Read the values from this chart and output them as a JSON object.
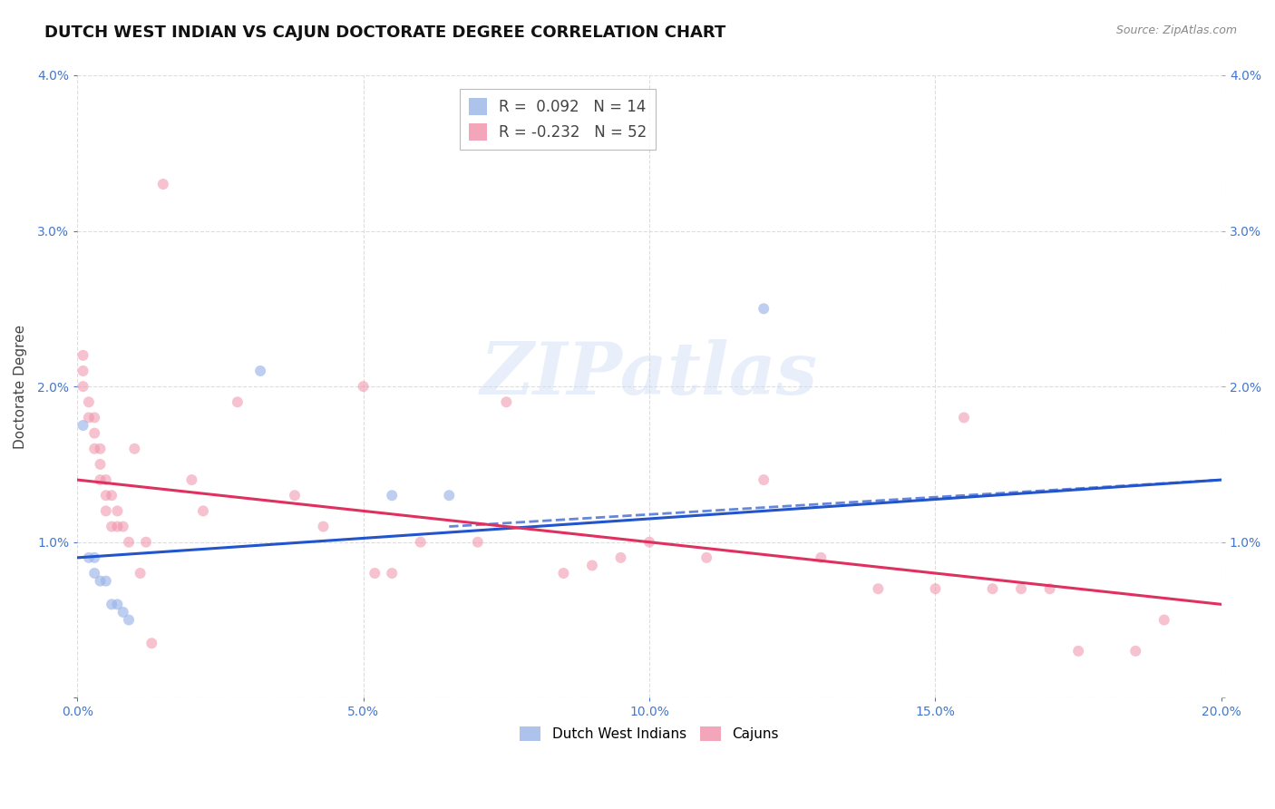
{
  "title": "DUTCH WEST INDIAN VS CAJUN DOCTORATE DEGREE CORRELATION CHART",
  "source": "Source: ZipAtlas.com",
  "ylabel_label": "Doctorate Degree",
  "x_min": 0.0,
  "x_max": 0.2,
  "y_min": 0.0,
  "y_max": 0.04,
  "x_ticks": [
    0.0,
    0.05,
    0.1,
    0.15,
    0.2
  ],
  "x_tick_labels": [
    "0.0%",
    "5.0%",
    "10.0%",
    "15.0%",
    "20.0%"
  ],
  "y_ticks": [
    0.0,
    0.01,
    0.02,
    0.03,
    0.04
  ],
  "y_tick_labels": [
    "",
    "1.0%",
    "2.0%",
    "3.0%",
    "4.0%"
  ],
  "dutch_color": "#9ab4e8",
  "cajun_color": "#f090a8",
  "dutch_line_color": "#2255cc",
  "cajun_line_color": "#e03060",
  "watermark_text": "ZIPatlas",
  "dutch_points_x": [
    0.001,
    0.002,
    0.003,
    0.003,
    0.004,
    0.005,
    0.006,
    0.007,
    0.008,
    0.009,
    0.032,
    0.055,
    0.065,
    0.12
  ],
  "dutch_points_y": [
    0.0175,
    0.009,
    0.009,
    0.008,
    0.0075,
    0.0075,
    0.006,
    0.006,
    0.0055,
    0.005,
    0.021,
    0.013,
    0.013,
    0.025
  ],
  "cajun_points_x": [
    0.001,
    0.001,
    0.001,
    0.002,
    0.002,
    0.003,
    0.003,
    0.003,
    0.004,
    0.004,
    0.004,
    0.005,
    0.005,
    0.005,
    0.006,
    0.006,
    0.007,
    0.007,
    0.008,
    0.009,
    0.01,
    0.011,
    0.012,
    0.013,
    0.015,
    0.02,
    0.022,
    0.028,
    0.038,
    0.043,
    0.05,
    0.052,
    0.055,
    0.06,
    0.07,
    0.075,
    0.085,
    0.09,
    0.095,
    0.1,
    0.11,
    0.12,
    0.13,
    0.14,
    0.15,
    0.155,
    0.16,
    0.165,
    0.17,
    0.175,
    0.185,
    0.19
  ],
  "cajun_points_y": [
    0.022,
    0.021,
    0.02,
    0.019,
    0.018,
    0.018,
    0.017,
    0.016,
    0.016,
    0.015,
    0.014,
    0.014,
    0.013,
    0.012,
    0.013,
    0.011,
    0.012,
    0.011,
    0.011,
    0.01,
    0.016,
    0.008,
    0.01,
    0.0035,
    0.033,
    0.014,
    0.012,
    0.019,
    0.013,
    0.011,
    0.02,
    0.008,
    0.008,
    0.01,
    0.01,
    0.019,
    0.008,
    0.0085,
    0.009,
    0.01,
    0.009,
    0.014,
    0.009,
    0.007,
    0.007,
    0.018,
    0.007,
    0.007,
    0.007,
    0.003,
    0.003,
    0.005
  ],
  "dutch_line_x": [
    0.0,
    0.2
  ],
  "dutch_line_y": [
    0.009,
    0.014
  ],
  "cajun_line_x": [
    0.0,
    0.2
  ],
  "cajun_line_y": [
    0.014,
    0.006
  ],
  "dutch_dashed_line_x": [
    0.065,
    0.2
  ],
  "dutch_dashed_line_y": [
    0.011,
    0.014
  ],
  "background_color": "#ffffff",
  "grid_color": "#dddddd",
  "title_fontsize": 13,
  "axis_label_fontsize": 11,
  "tick_fontsize": 10,
  "marker_size": 75,
  "legend_R_entries": [
    {
      "label": "R =  0.092   N = 14",
      "color": "#9ab4e8"
    },
    {
      "label": "R = -0.232   N = 52",
      "color": "#f090a8"
    }
  ],
  "bottom_legend": [
    {
      "label": "Dutch West Indians",
      "color": "#9ab4e8"
    },
    {
      "label": "Cajuns",
      "color": "#f090a8"
    }
  ]
}
